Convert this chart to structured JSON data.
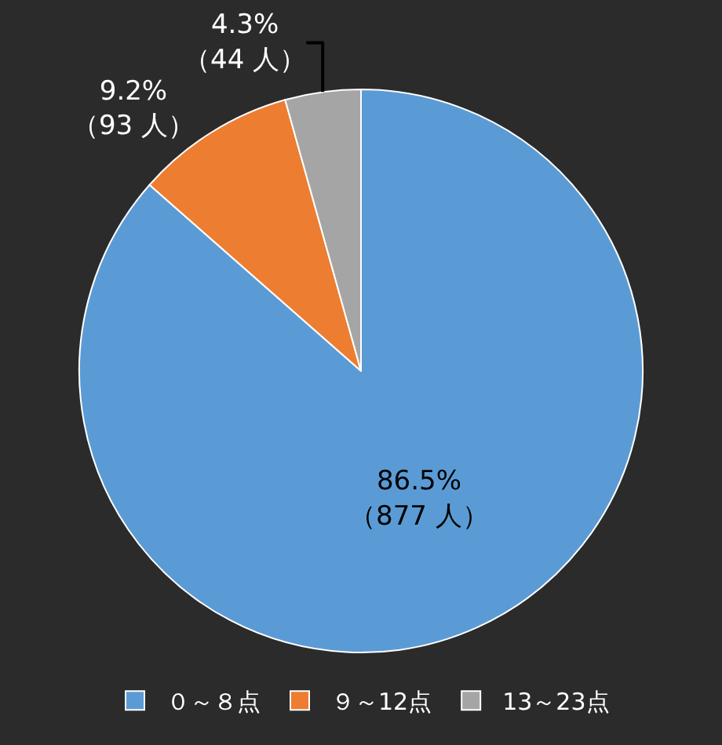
{
  "chart_data": {
    "type": "pie",
    "categories": [
      "０～８点",
      "９～12点",
      "13～23点"
    ],
    "values": [
      877,
      93,
      44
    ],
    "colors": [
      "#5b9bd5",
      "#ed7d31",
      "#a5a5a5"
    ],
    "value_labels": [
      "86.5%\n（877 人）",
      "9.2%\n（93 人）",
      "4.3%\n（44 人）"
    ],
    "legend": "bottom"
  }
}
